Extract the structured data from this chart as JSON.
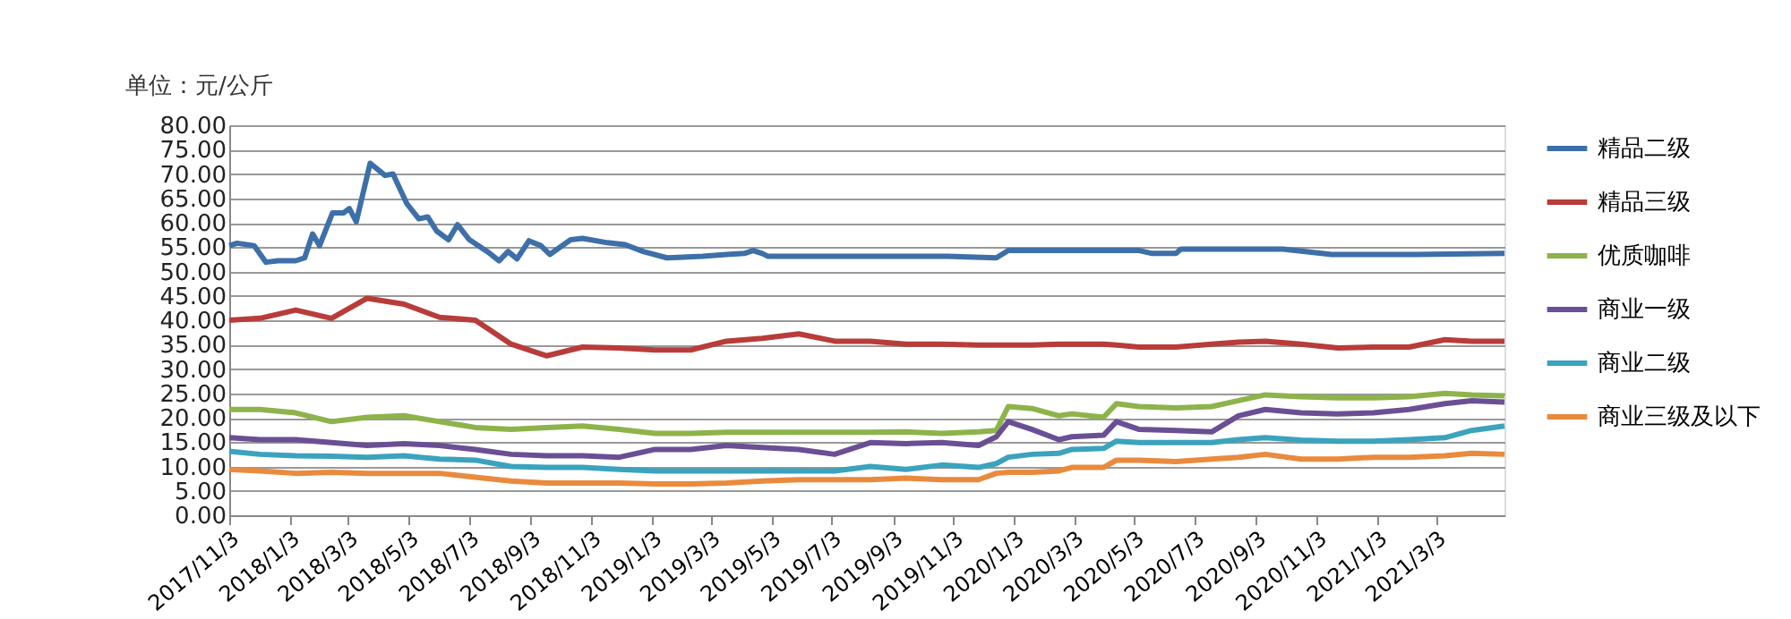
{
  "chart_data": {
    "type": "line",
    "annotations": [
      "单位：元/公斤"
    ],
    "x": [
      "2017-11-03",
      "2017-12-04",
      "2018-01-09",
      "2018-02-14",
      "2018-03-22",
      "2018-04-28",
      "2018-06-03",
      "2018-07-09",
      "2018-08-14",
      "2018-09-19",
      "2018-10-25",
      "2018-12-01",
      "2019-01-06",
      "2019-02-11",
      "2019-03-19",
      "2019-04-24",
      "2019-05-31",
      "2019-07-06",
      "2019-08-11",
      "2019-09-16",
      "2019-10-22",
      "2019-11-28",
      "2019-12-16",
      "2019-12-28",
      "2020-01-21",
      "2020-02-17",
      "2020-03-01",
      "2020-04-02",
      "2020-04-15",
      "2020-05-08",
      "2020-06-14",
      "2020-07-20",
      "2020-08-16",
      "2020-09-12",
      "2020-10-18",
      "2020-11-24",
      "2020-12-30",
      "2021-02-04",
      "2021-03-12",
      "2021-04-08",
      "2021-05-11"
    ],
    "series": [
      {
        "name": "精品二级",
        "color": "#3d6fa8",
        "x": [
          "2017-11-03",
          "2017-11-11",
          "2017-11-28",
          "2017-12-10",
          "2017-12-22",
          "2018-01-09",
          "2018-01-18",
          "2018-01-26",
          "2018-02-02",
          "2018-02-15",
          "2018-02-26",
          "2018-03-04",
          "2018-03-11",
          "2018-03-25",
          "2018-04-09",
          "2018-04-17",
          "2018-05-01",
          "2018-05-13",
          "2018-05-22",
          "2018-05-31",
          "2018-06-12",
          "2018-06-21",
          "2018-07-03",
          "2018-07-21",
          "2018-08-02",
          "2018-08-11",
          "2018-08-20",
          "2018-09-01",
          "2018-09-13",
          "2018-09-22",
          "2018-10-13",
          "2018-10-25",
          "2018-11-19",
          "2018-12-07",
          "2018-12-25",
          "2019-01-18",
          "2019-02-23",
          "2019-03-19",
          "2019-04-06",
          "2019-04-15",
          "2019-04-24",
          "2019-04-30",
          "2019-08-11",
          "2019-10-28",
          "2019-12-16",
          "2019-12-28",
          "2020-05-08",
          "2020-05-21",
          "2020-06-14",
          "2020-06-19",
          "2020-09-30",
          "2020-11-18",
          "2021-02-09",
          "2021-05-11"
        ],
        "values": [
          55.3,
          55.8,
          55.3,
          51.9,
          52.2,
          52.2,
          52.8,
          57.7,
          55.3,
          62.0,
          62.0,
          62.9,
          60.2,
          72.2,
          69.7,
          70.0,
          63.9,
          60.8,
          61.2,
          58.3,
          56.5,
          59.6,
          56.5,
          54.1,
          52.2,
          54.1,
          52.6,
          56.3,
          55.3,
          53.5,
          56.5,
          56.8,
          55.9,
          55.5,
          54.1,
          52.8,
          53.1,
          53.5,
          53.7,
          54.3,
          53.7,
          53.1,
          53.1,
          53.1,
          52.8,
          54.3,
          54.3,
          53.7,
          53.7,
          54.6,
          54.6,
          53.5,
          53.5,
          53.7
        ]
      },
      {
        "name": "精品三级",
        "color": "#b83c3a",
        "values": [
          40.0,
          40.4,
          42.1,
          40.4,
          44.5,
          43.3,
          40.6,
          40.0,
          35.1,
          32.7,
          34.5,
          34.3,
          33.9,
          33.9,
          35.7,
          36.3,
          37.2,
          35.7,
          35.7,
          35.1,
          35.1,
          34.9,
          34.9,
          34.9,
          34.9,
          35.1,
          35.1,
          35.1,
          34.9,
          34.5,
          34.5,
          35.1,
          35.5,
          35.7,
          35.1,
          34.3,
          34.5,
          34.5,
          36.0,
          35.7,
          35.7
        ]
      },
      {
        "name": "优质咖啡",
        "color": "#8db34a",
        "values": [
          21.7,
          21.7,
          21.0,
          19.2,
          20.1,
          20.4,
          19.2,
          18.0,
          17.6,
          18.0,
          18.3,
          17.6,
          16.8,
          16.8,
          17.0,
          17.0,
          17.0,
          17.0,
          17.0,
          17.1,
          16.8,
          17.1,
          17.4,
          22.3,
          21.9,
          20.4,
          20.8,
          20.1,
          22.9,
          22.3,
          22.0,
          22.3,
          23.5,
          24.7,
          24.3,
          24.1,
          24.1,
          24.3,
          25.0,
          24.7,
          24.5
        ]
      },
      {
        "name": "商业一级",
        "color": "#6b4f94",
        "values": [
          15.9,
          15.5,
          15.5,
          14.9,
          14.3,
          14.7,
          14.3,
          13.5,
          12.5,
          12.2,
          12.2,
          11.9,
          13.5,
          13.5,
          14.3,
          13.9,
          13.5,
          12.5,
          14.9,
          14.7,
          14.9,
          14.3,
          16.1,
          19.2,
          17.6,
          15.5,
          16.1,
          16.4,
          19.2,
          17.6,
          17.4,
          17.1,
          20.4,
          21.7,
          21.0,
          20.8,
          21.0,
          21.7,
          22.9,
          23.5,
          23.2
        ]
      },
      {
        "name": "商业二级",
        "color": "#3ba3bd",
        "values": [
          13.1,
          12.5,
          12.2,
          12.1,
          11.9,
          12.2,
          11.5,
          11.3,
          10.0,
          9.8,
          9.8,
          9.4,
          9.1,
          9.1,
          9.1,
          9.1,
          9.1,
          9.1,
          10.0,
          9.4,
          10.3,
          9.8,
          10.6,
          11.9,
          12.5,
          12.7,
          13.5,
          13.7,
          15.2,
          14.9,
          14.9,
          14.9,
          15.5,
          15.9,
          15.4,
          15.2,
          15.2,
          15.5,
          15.9,
          17.4,
          18.3
        ]
      },
      {
        "name": "商业三级及以下",
        "color": "#e98a3d",
        "values": [
          9.4,
          9.1,
          8.6,
          8.8,
          8.6,
          8.6,
          8.6,
          7.8,
          7.0,
          6.6,
          6.6,
          6.6,
          6.4,
          6.4,
          6.6,
          7.0,
          7.3,
          7.3,
          7.3,
          7.6,
          7.3,
          7.3,
          8.6,
          8.8,
          8.8,
          9.1,
          9.8,
          9.8,
          11.3,
          11.3,
          11.0,
          11.5,
          11.9,
          12.5,
          11.5,
          11.5,
          11.9,
          11.9,
          12.2,
          12.7,
          12.5
        ]
      }
    ],
    "xlim": [
      "2017-11-03",
      "2021-05-11"
    ],
    "xticks": [
      {
        "value": "2017-11-03",
        "label": "2017/11/3"
      },
      {
        "value": "2018-01-03",
        "label": "2018/1/3"
      },
      {
        "value": "2018-03-03",
        "label": "2018/3/3"
      },
      {
        "value": "2018-05-03",
        "label": "2018/5/3"
      },
      {
        "value": "2018-07-03",
        "label": "2018/7/3"
      },
      {
        "value": "2018-09-03",
        "label": "2018/9/3"
      },
      {
        "value": "2018-11-03",
        "label": "2018/11/3"
      },
      {
        "value": "2019-01-03",
        "label": "2019/1/3"
      },
      {
        "value": "2019-03-03",
        "label": "2019/3/3"
      },
      {
        "value": "2019-05-03",
        "label": "2019/5/3"
      },
      {
        "value": "2019-07-03",
        "label": "2019/7/3"
      },
      {
        "value": "2019-09-03",
        "label": "2019/9/3"
      },
      {
        "value": "2019-11-03",
        "label": "2019/11/3"
      },
      {
        "value": "2020-01-03",
        "label": "2020/1/3"
      },
      {
        "value": "2020-03-03",
        "label": "2020/3/3"
      },
      {
        "value": "2020-05-03",
        "label": "2020/5/3"
      },
      {
        "value": "2020-07-03",
        "label": "2020/7/3"
      },
      {
        "value": "2020-09-03",
        "label": "2020/9/3"
      },
      {
        "value": "2020-11-03",
        "label": "2020/11/3"
      },
      {
        "value": "2021-01-03",
        "label": "2021/1/3"
      },
      {
        "value": "2021-03-03",
        "label": "2021/3/3"
      }
    ],
    "ylim": [
      0,
      80
    ],
    "yticks": [
      {
        "value": 0,
        "label": "0.00"
      },
      {
        "value": 5,
        "label": "5.00"
      },
      {
        "value": 10,
        "label": "10.00"
      },
      {
        "value": 15,
        "label": "15.00"
      },
      {
        "value": 20,
        "label": "20.00"
      },
      {
        "value": 25,
        "label": "25.00"
      },
      {
        "value": 30,
        "label": "30.00"
      },
      {
        "value": 35,
        "label": "35.00"
      },
      {
        "value": 40,
        "label": "40.00"
      },
      {
        "value": 45,
        "label": "45.00"
      },
      {
        "value": 50,
        "label": "50.00"
      },
      {
        "value": 55,
        "label": "55.00"
      },
      {
        "value": 60,
        "label": "60.00"
      },
      {
        "value": 65,
        "label": "65.00"
      },
      {
        "value": 70,
        "label": "70.00"
      },
      {
        "value": 75,
        "label": "75.00"
      },
      {
        "value": 80,
        "label": "80.00"
      }
    ],
    "grid": "y",
    "legend": "right",
    "marker": "none",
    "line_style": "solid"
  }
}
